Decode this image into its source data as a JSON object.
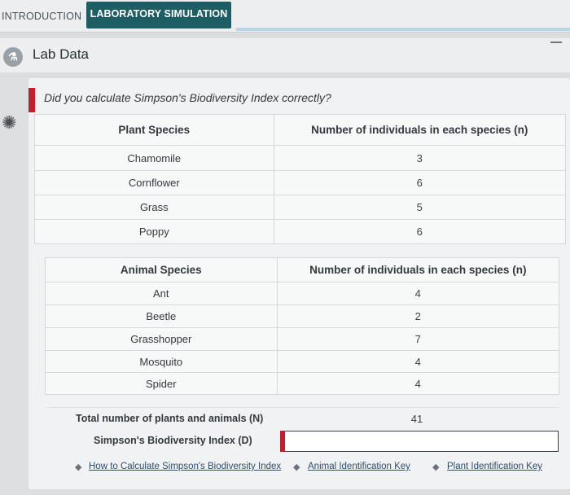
{
  "tabs": {
    "intro": "INTRODUCTION",
    "lab": "LABORATORY SIMULATION"
  },
  "header": {
    "title": "Lab Data",
    "icon": "flask-icon"
  },
  "question": "Did you calculate Simpson's Biodiversity Index correctly?",
  "plants": {
    "col_species": "Plant Species",
    "col_count": "Number of individuals in each species (n)",
    "rows": [
      {
        "species": "Chamomile",
        "count": "3"
      },
      {
        "species": "Cornflower",
        "count": "6"
      },
      {
        "species": "Grass",
        "count": "5"
      },
      {
        "species": "Poppy",
        "count": "6"
      }
    ]
  },
  "animals": {
    "col_species": "Animal Species",
    "col_count": "Number of individuals in each species (n)",
    "rows": [
      {
        "species": "Ant",
        "count": "4"
      },
      {
        "species": "Beetle",
        "count": "2"
      },
      {
        "species": "Grasshopper",
        "count": "7"
      },
      {
        "species": "Mosquito",
        "count": "4"
      },
      {
        "species": "Spider",
        "count": "4"
      }
    ]
  },
  "totals": {
    "total_label": "Total number of plants and animals (N)",
    "total_value": "41",
    "index_label": "Simpson's Biodiversity Index (D)",
    "index_value": ""
  },
  "links": {
    "how_to": "How to Calculate Simpson's Biodiversity Index",
    "animal_key": "Animal Identification Key",
    "plant_key": "Plant Identification Key"
  },
  "colors": {
    "tab_active": "#1d5d64",
    "error_flag": "#c0202d",
    "link": "#2d4d6e"
  }
}
